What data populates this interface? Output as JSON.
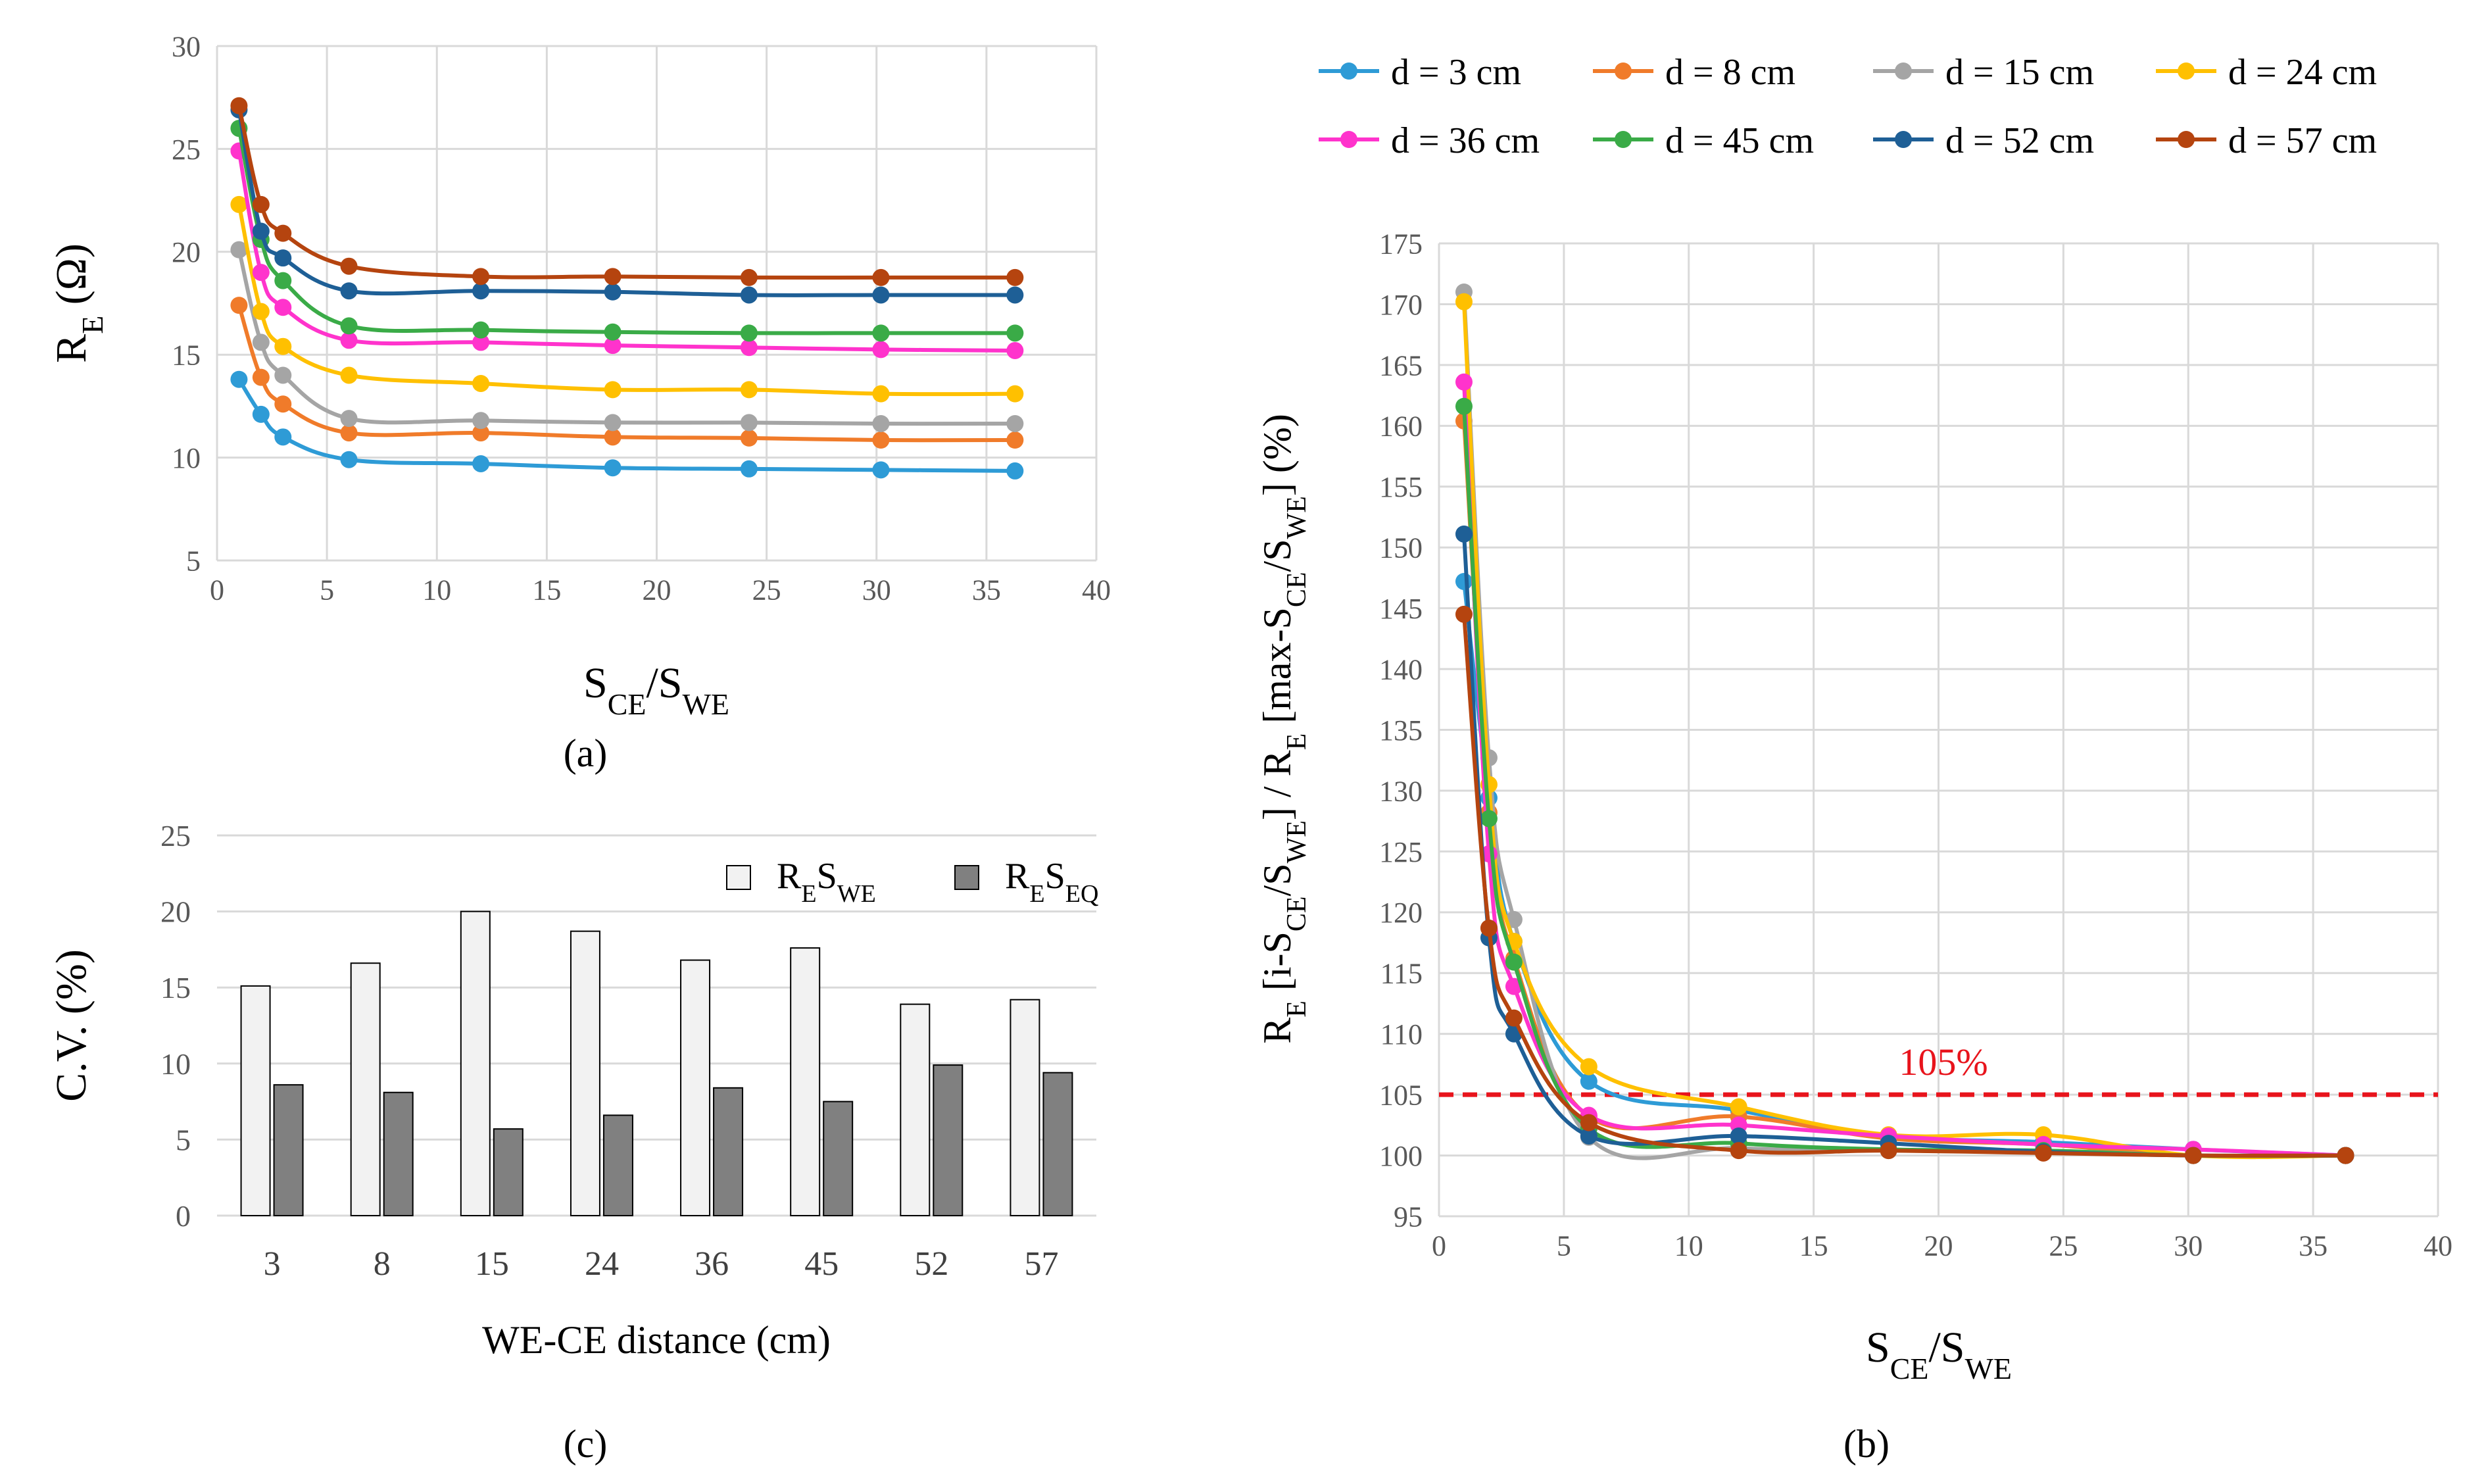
{
  "panels": {
    "a": "(a)",
    "b": "(b)",
    "c": "(c)"
  },
  "legend_b": [
    "d = 3 cm",
    "d = 8 cm",
    "d = 15 cm",
    "d = 24 cm",
    "d = 36 cm",
    "d = 45 cm",
    "d = 52 cm",
    "d = 57 cm"
  ],
  "chart_data": [
    {
      "id": "a",
      "type": "line",
      "ylabel_main": "R",
      "ylabel_sub": "E",
      "ylabel_unit": " (Ω)",
      "xlabel_main": "S",
      "xlabel_sub1": "CE",
      "xlabel_mid": "/S",
      "xlabel_sub2": "WE",
      "xlim": [
        0,
        40
      ],
      "ylim": [
        5,
        30
      ],
      "xticks": [
        0,
        5,
        10,
        15,
        20,
        25,
        30,
        35,
        40
      ],
      "yticks": [
        5,
        10,
        15,
        20,
        25,
        30
      ],
      "grid": true,
      "x": [
        1,
        2,
        3,
        6,
        12,
        18,
        24.2,
        30.2,
        36.3
      ],
      "series": [
        {
          "name": "d = 3 cm",
          "color": "#2e9bd6",
          "values": [
            13.8,
            12.1,
            11.0,
            9.9,
            9.7,
            9.5,
            9.45,
            9.4,
            9.35
          ]
        },
        {
          "name": "d = 8 cm",
          "color": "#f07b2a",
          "values": [
            17.4,
            13.9,
            12.6,
            11.2,
            11.2,
            11.0,
            10.95,
            10.85,
            10.85
          ]
        },
        {
          "name": "d = 15 cm",
          "color": "#a5a5a5",
          "values": [
            20.1,
            15.6,
            14.0,
            11.9,
            11.8,
            11.7,
            11.7,
            11.65,
            11.65
          ]
        },
        {
          "name": "d = 24 cm",
          "color": "#ffc000",
          "values": [
            22.3,
            17.1,
            15.4,
            14.0,
            13.6,
            13.3,
            13.3,
            13.1,
            13.1
          ]
        },
        {
          "name": "d = 36 cm",
          "color": "#ff33cc",
          "values": [
            24.9,
            19.0,
            17.3,
            15.7,
            15.6,
            15.45,
            15.35,
            15.25,
            15.2
          ]
        },
        {
          "name": "d = 45 cm",
          "color": "#3aab47",
          "values": [
            26.0,
            20.6,
            18.6,
            16.4,
            16.2,
            16.1,
            16.05,
            16.05,
            16.05
          ]
        },
        {
          "name": "d = 52 cm",
          "color": "#1e5f96",
          "values": [
            26.9,
            21.0,
            19.7,
            18.1,
            18.1,
            18.05,
            17.9,
            17.9,
            17.9
          ]
        },
        {
          "name": "d = 57 cm",
          "color": "#b5440f",
          "values": [
            27.1,
            22.3,
            20.9,
            19.3,
            18.8,
            18.8,
            18.75,
            18.75,
            18.75
          ]
        }
      ]
    },
    {
      "id": "b",
      "type": "line",
      "ylabel_parts": [
        "R",
        "E",
        " [i-S",
        "CE",
        "/S",
        "WE",
        "] / R",
        "E",
        " [max-S",
        "CE",
        "/S",
        "WE",
        "]  (%)"
      ],
      "xlabel_main": "S",
      "xlabel_sub1": "CE",
      "xlabel_mid": "/S",
      "xlabel_sub2": "WE",
      "xlim": [
        0,
        40
      ],
      "ylim": [
        95,
        175
      ],
      "xticks": [
        0,
        5,
        10,
        15,
        20,
        25,
        30,
        35,
        40
      ],
      "yticks": [
        95,
        100,
        105,
        110,
        115,
        120,
        125,
        130,
        135,
        140,
        145,
        150,
        155,
        160,
        165,
        170,
        175
      ],
      "grid": true,
      "reference_line": {
        "y": 105,
        "label": "105%",
        "color": "#e8141c"
      },
      "x": [
        1,
        2,
        3,
        6,
        12,
        18,
        24.2,
        30.2,
        36.3
      ],
      "series": [
        {
          "name": "d = 3 cm",
          "color": "#2e9bd6",
          "values": [
            147.2,
            129.4,
            117.6,
            106.1,
            103.7,
            101.6,
            101.1,
            100.5,
            100
          ]
        },
        {
          "name": "d = 8 cm",
          "color": "#f07b2a",
          "values": [
            160.4,
            128.2,
            116.2,
            103.2,
            103.2,
            101.4,
            100.9,
            100,
            100
          ]
        },
        {
          "name": "d = 15 cm",
          "color": "#a5a5a5",
          "values": [
            171.0,
            132.7,
            119.4,
            101.5,
            100.6,
            100.4,
            100.4,
            100,
            100
          ]
        },
        {
          "name": "d = 24 cm",
          "color": "#ffc000",
          "values": [
            170.2,
            130.5,
            117.6,
            107.3,
            104.0,
            101.7,
            101.7,
            100,
            100
          ]
        },
        {
          "name": "d = 36 cm",
          "color": "#ff33cc",
          "values": [
            163.6,
            124.8,
            113.9,
            103.3,
            102.5,
            101.6,
            100.9,
            100.5,
            100
          ]
        },
        {
          "name": "d = 45 cm",
          "color": "#3aab47",
          "values": [
            161.6,
            127.7,
            115.9,
            102.2,
            101.0,
            100.5,
            100.4,
            100,
            100
          ]
        },
        {
          "name": "d = 52 cm",
          "color": "#1e5f96",
          "values": [
            151.1,
            117.9,
            110.0,
            101.6,
            101.6,
            101.0,
            100.3,
            100,
            100
          ]
        },
        {
          "name": "d = 57 cm",
          "color": "#b5440f",
          "values": [
            144.5,
            118.7,
            111.3,
            102.7,
            100.4,
            100.4,
            100.2,
            100,
            100
          ]
        }
      ]
    },
    {
      "id": "c",
      "type": "bar",
      "ylabel": "C.V. (%)",
      "xlabel": "WE-CE distance (cm)",
      "ylim": [
        0,
        25
      ],
      "yticks": [
        0,
        5,
        10,
        15,
        20,
        25
      ],
      "grid": true,
      "categories": [
        "3",
        "8",
        "15",
        "24",
        "36",
        "45",
        "52",
        "57"
      ],
      "series": [
        {
          "name_main": "R",
          "name_sub1": "E",
          "name_mid": "S",
          "name_sub2": "WE",
          "color": "#f2f2f2",
          "values": [
            15.1,
            16.6,
            20.0,
            18.7,
            16.8,
            17.6,
            13.9,
            14.2
          ]
        },
        {
          "name_main": "R",
          "name_sub1": "E",
          "name_mid": "S",
          "name_sub2": "EQ",
          "color": "#808080",
          "values": [
            8.6,
            8.1,
            5.7,
            6.6,
            8.4,
            7.5,
            9.9,
            9.4
          ]
        }
      ]
    }
  ]
}
